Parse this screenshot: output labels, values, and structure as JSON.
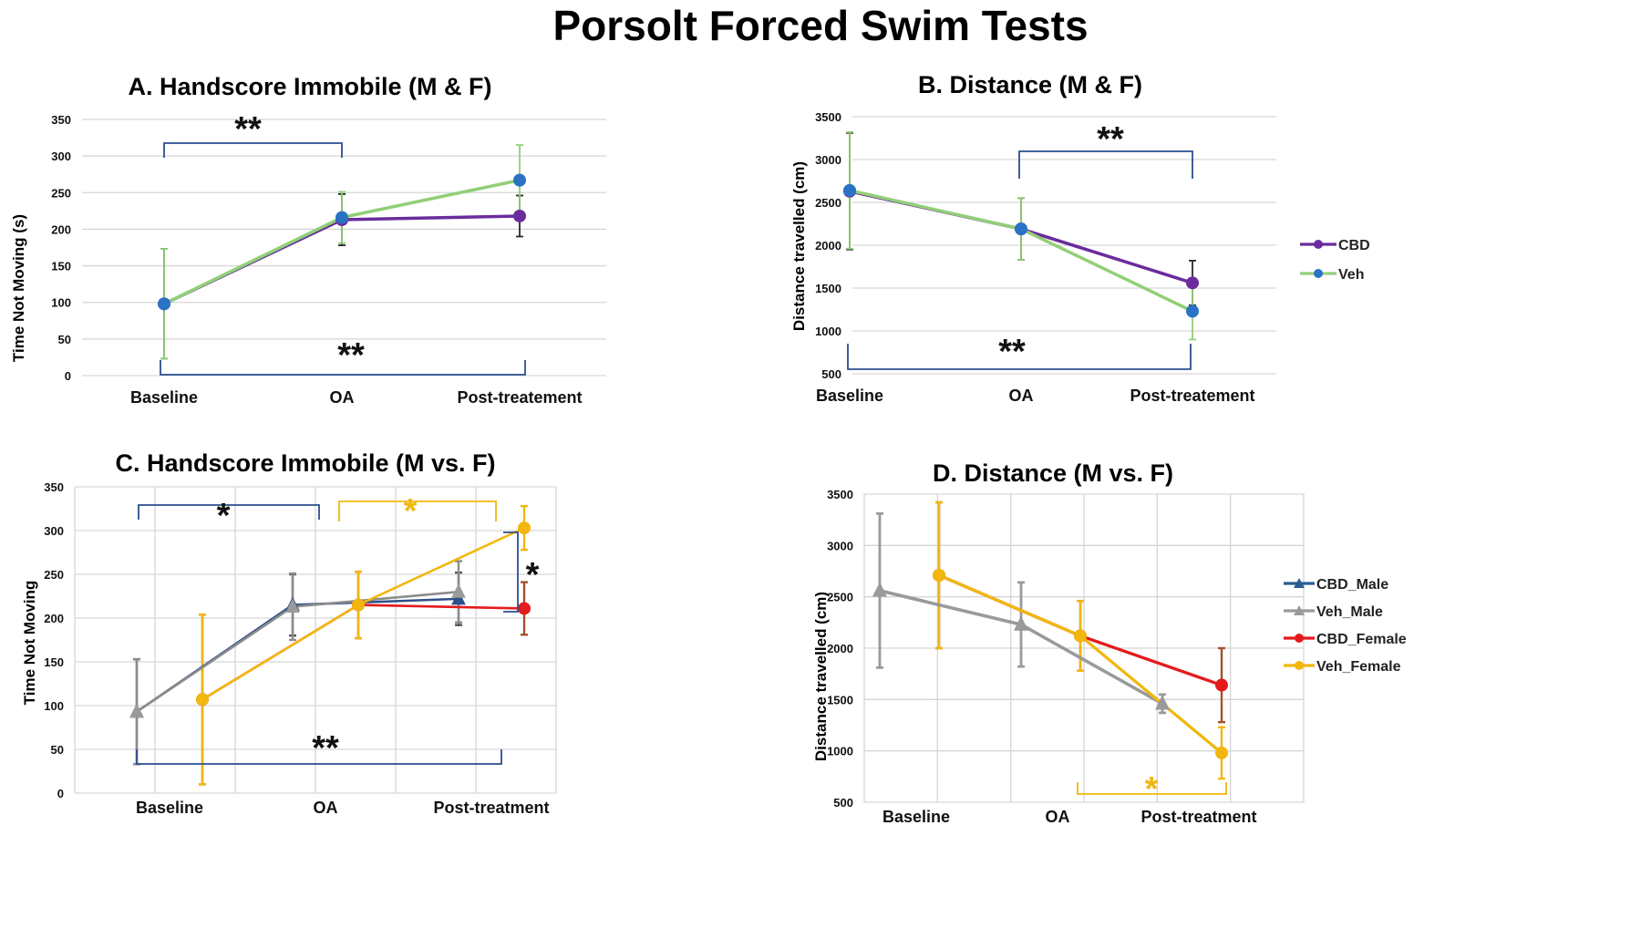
{
  "figure_title": "Porsolt Forced Swim Tests",
  "chart_data": [
    {
      "panel": "A",
      "type": "line",
      "title": "A. Handscore Immobile (M & F)",
      "xlabel": "",
      "ylabel": "Time Not Moving (s)",
      "categories": [
        "Baseline",
        "OA",
        "Post-treatement"
      ],
      "ylim": [
        0,
        350
      ],
      "yticks": [
        0,
        50,
        100,
        150,
        200,
        250,
        300,
        350
      ],
      "grid": true,
      "legend": "none",
      "series": [
        {
          "name": "CBD",
          "color": "#6a2c9c",
          "marker_color": "#6a2c9c",
          "marker": "circle",
          "values": [
            98,
            213,
            218
          ],
          "err": [
            75,
            35,
            28
          ],
          "err_color": "#2a2a2a"
        },
        {
          "name": "Veh",
          "color": "#92cf78",
          "marker_color": "#2a73c4",
          "marker": "circle",
          "values": [
            98,
            216,
            267
          ],
          "err": [
            75,
            35,
            48
          ],
          "err_color": "#92cf78"
        }
      ],
      "annotations": [
        {
          "label": "**",
          "from": 0,
          "to": 1,
          "side": "top",
          "color": "#2a4f8f"
        },
        {
          "label": "**",
          "from": 0,
          "to": 2,
          "side": "bottom",
          "color": "#2a4f8f"
        }
      ]
    },
    {
      "panel": "B",
      "type": "line",
      "title": "B. Distance (M & F)",
      "xlabel": "",
      "ylabel": "Distance travelled (cm)",
      "categories": [
        "Baseline",
        "OA",
        "Post-treatement"
      ],
      "ylim": [
        500,
        3500
      ],
      "yticks": [
        500,
        1000,
        1500,
        2000,
        2500,
        3000,
        3500
      ],
      "grid": true,
      "legend": "right",
      "series": [
        {
          "name": "CBD",
          "color": "#6a2c9c",
          "marker_color": "#6a2c9c",
          "marker": "circle",
          "values": [
            2630,
            2190,
            1560
          ],
          "err": [
            680,
            360,
            260
          ],
          "err_color": "#2a2a2a"
        },
        {
          "name": "Veh",
          "color": "#92cf78",
          "marker_color": "#2a73c4",
          "marker": "circle",
          "values": [
            2640,
            2190,
            1230
          ],
          "err": [
            680,
            360,
            330
          ],
          "err_color": "#92cf78"
        }
      ],
      "annotations": [
        {
          "label": "**",
          "from": 1,
          "to": 2,
          "side": "top",
          "color": "#2a4f8f"
        },
        {
          "label": "**",
          "from": 0,
          "to": 2,
          "side": "bottom",
          "color": "#2a4f8f"
        }
      ]
    },
    {
      "panel": "C",
      "type": "line",
      "title": "C. Handscore Immobile (M vs. F)",
      "xlabel": "",
      "ylabel": "Time Not Moving",
      "categories": [
        "Baseline",
        "OA",
        "Post-treatment"
      ],
      "ylim": [
        0,
        350
      ],
      "yticks": [
        0,
        50,
        100,
        150,
        200,
        250,
        300,
        350
      ],
      "grid": true,
      "legend": "none",
      "series": [
        {
          "name": "CBD_Male",
          "color": "#2f4f8a",
          "marker_color": "#2f4f8a",
          "marker": "triangle",
          "values": [
            93,
            215,
            222
          ],
          "err": [
            60,
            35,
            30
          ],
          "err_color": "#555555"
        },
        {
          "name": "Veh_Male",
          "color": "#8c8c8c",
          "marker_color": "#9a9a9a",
          "marker": "triangle",
          "values": [
            93,
            213,
            230
          ],
          "err": [
            60,
            38,
            35
          ],
          "err_color": "#8c8c8c"
        },
        {
          "name": "CBD_Female",
          "color": "#e41a1c",
          "marker_color": "#e41a1c",
          "marker": "circle",
          "values": [
            107,
            215,
            211
          ],
          "err": [
            97,
            38,
            30
          ],
          "err_color": "#a0522d"
        },
        {
          "name": "Veh_Female",
          "color": "#f2b70f",
          "marker_color": "#f2b70f",
          "marker": "circle",
          "values": [
            107,
            215,
            303
          ],
          "err": [
            97,
            38,
            25
          ],
          "err_color": "#f2b70f"
        }
      ],
      "annotations": [
        {
          "label": "*",
          "from": 0,
          "to": 1,
          "side": "top",
          "color": "#2a4f8f"
        },
        {
          "label": "*",
          "from": 1,
          "to": 2,
          "side": "top",
          "color": "#f2b70f"
        },
        {
          "label": "*",
          "from": 2,
          "to": 2,
          "side": "right",
          "color": "#2a4f8f"
        },
        {
          "label": "**",
          "from": 0,
          "to": 2,
          "side": "bottom",
          "color": "#2a4f8f"
        }
      ]
    },
    {
      "panel": "D",
      "type": "line",
      "title": "D. Distance (M vs. F)",
      "xlabel": "",
      "ylabel": "Distance travelled (cm)",
      "categories": [
        "Baseline",
        "OA",
        "Post-treatment"
      ],
      "ylim": [
        500,
        3500
      ],
      "yticks": [
        500,
        1000,
        1500,
        2000,
        2500,
        3000,
        3500
      ],
      "grid": true,
      "legend": "right",
      "series": [
        {
          "name": "CBD_Male",
          "color": "#2b5c8f",
          "marker_color": "#2b5c8f",
          "marker": "triangle",
          "values": [
            2560,
            2230,
            1460
          ],
          "err": [
            750,
            410,
            90
          ],
          "err_color": "#555555"
        },
        {
          "name": "Veh_Male",
          "color": "#9a9a9a",
          "marker_color": "#9a9a9a",
          "marker": "triangle",
          "values": [
            2560,
            2230,
            1460
          ],
          "err": [
            750,
            410,
            90
          ],
          "err_color": "#9a9a9a"
        },
        {
          "name": "CBD_Female",
          "color": "#e41a1c",
          "marker_color": "#e41a1c",
          "marker": "circle",
          "values": [
            2710,
            2120,
            1640
          ],
          "err": [
            710,
            340,
            360
          ],
          "err_color": "#a0522d"
        },
        {
          "name": "Veh_Female",
          "color": "#f2b70f",
          "marker_color": "#f2b70f",
          "marker": "circle",
          "values": [
            2710,
            2120,
            980
          ],
          "err": [
            710,
            340,
            250
          ],
          "err_color": "#f2b70f"
        }
      ],
      "annotations": [
        {
          "label": "*",
          "from": 1,
          "to": 2,
          "side": "bottom",
          "color": "#f2b70f"
        }
      ]
    }
  ]
}
